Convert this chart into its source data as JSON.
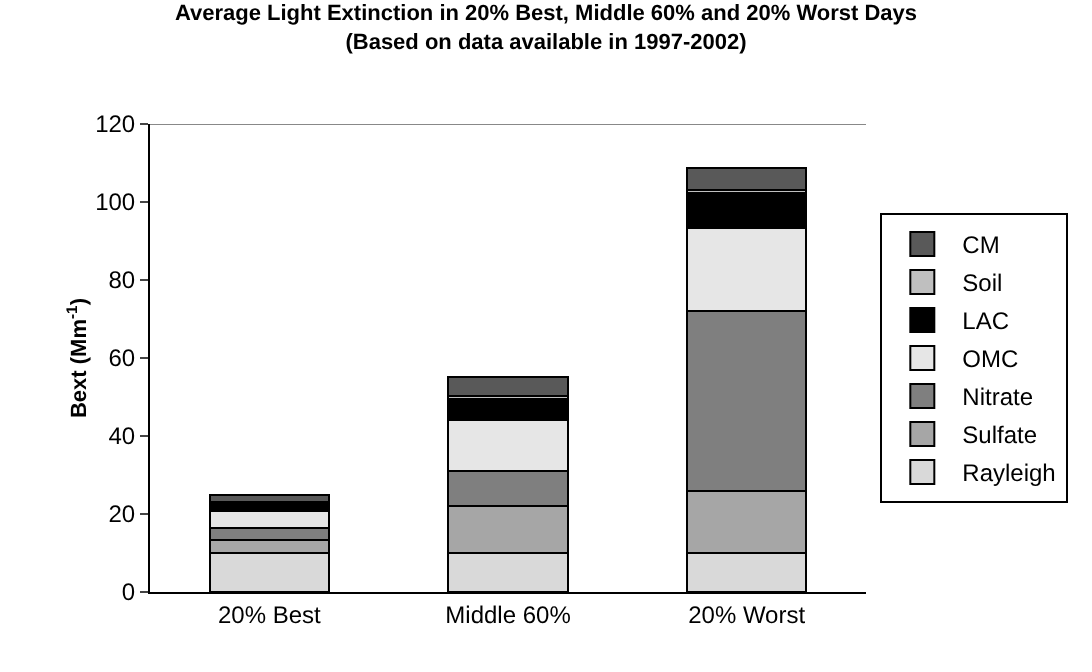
{
  "chart_data": {
    "type": "bar",
    "stacked": true,
    "title": "Average Light Extinction in 20% Best, Middle 60% and 20% Worst Days\n(Based on data available in 1997-2002)",
    "ylabel": "Bext (Mm$^{-1}$)",
    "categories": [
      "20% Best",
      "Middle 60%",
      "20% Worst"
    ],
    "series": [
      {
        "name": "Rayleigh",
        "color": "#d9d9d9",
        "values": [
          10,
          10,
          10
        ]
      },
      {
        "name": "Sulfate",
        "color": "#a6a6a6",
        "values": [
          3.4,
          12,
          16
        ]
      },
      {
        "name": "Nitrate",
        "color": "#7f7f7f",
        "values": [
          3,
          9,
          46
        ]
      },
      {
        "name": "OMC",
        "color": "#e6e6e6",
        "values": [
          4.3,
          13,
          21.4
        ]
      },
      {
        "name": "LAC",
        "color": "#000000",
        "values": [
          2.1,
          5.5,
          9
        ]
      },
      {
        "name": "Soil",
        "color": "#bfbfbf",
        "values": [
          0.4,
          0.8,
          0.6
        ]
      },
      {
        "name": "CM",
        "color": "#595959",
        "values": [
          1.6,
          4.8,
          5.8
        ]
      }
    ],
    "ylim": [
      0,
      120
    ],
    "yticks": [
      0,
      20,
      40,
      60,
      80,
      100,
      120
    ],
    "grid": false,
    "legend": "right"
  }
}
